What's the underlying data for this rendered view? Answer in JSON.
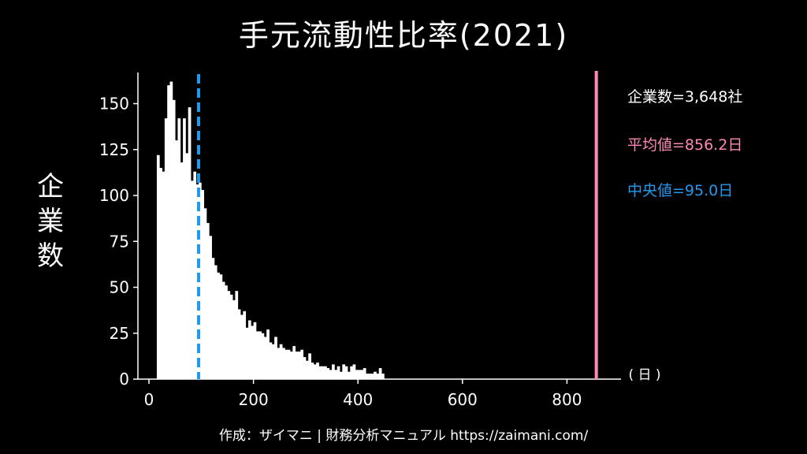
{
  "title": "手元流動性比率(2021)",
  "footer": "作成：ザイマニ | 財務分析マニュアル https://zaimani.com/",
  "annotations": {
    "count": "企業数=3,648社",
    "mean": "平均値=856.2日",
    "median": "中央値=95.0日"
  },
  "colors": {
    "background": "#000000",
    "bars": "#ffffff",
    "mean_line": "#ff88b8",
    "median_line": "#2299ee"
  },
  "chart_data": {
    "type": "bar",
    "title": "手元流動性比率(2021)",
    "xlabel": "日",
    "ylabel": "企業数",
    "xlim": [
      -20,
      900
    ],
    "ylim": [
      0,
      167
    ],
    "x_ticks": [
      0,
      200,
      400,
      600,
      800
    ],
    "y_ticks": [
      0,
      25,
      50,
      75,
      100,
      125,
      150
    ],
    "bin_width": 5,
    "bin_starts": [
      15,
      20,
      25,
      30,
      35,
      40,
      45,
      50,
      55,
      60,
      65,
      70,
      75,
      80,
      85,
      90,
      95,
      100,
      105,
      110,
      115,
      120,
      125,
      130,
      135,
      140,
      145,
      150,
      155,
      160,
      165,
      170,
      175,
      180,
      185,
      190,
      195,
      200,
      205,
      210,
      215,
      220,
      225,
      230,
      235,
      240,
      245,
      250,
      255,
      260,
      265,
      270,
      275,
      280,
      285,
      290,
      295,
      300,
      305,
      310,
      315,
      320,
      325,
      330,
      335,
      340,
      345,
      350,
      355,
      360,
      365,
      370,
      375,
      380,
      385,
      390,
      395,
      400,
      405,
      410,
      415,
      420,
      425,
      430,
      435,
      440,
      445
    ],
    "values": [
      122,
      115,
      113,
      142,
      160,
      162,
      152,
      130,
      142,
      118,
      142,
      123,
      148,
      108,
      113,
      106,
      107,
      103,
      93,
      85,
      78,
      66,
      62,
      58,
      57,
      53,
      51,
      48,
      46,
      43,
      48,
      38,
      35,
      37,
      28,
      32,
      29,
      31,
      26,
      26,
      25,
      23,
      27,
      20,
      19,
      23,
      17,
      19,
      17,
      16,
      16,
      15,
      18,
      15,
      15,
      16,
      12,
      10,
      14,
      9,
      8,
      9,
      7,
      7,
      7,
      6,
      5,
      8,
      5,
      7,
      4,
      8,
      7,
      4,
      7,
      8,
      5,
      5,
      5,
      6,
      3,
      3,
      3,
      4,
      3,
      6,
      3
    ],
    "mean": 856.2,
    "median": 95.0,
    "count": 3648,
    "grid": false,
    "legend": "none"
  }
}
